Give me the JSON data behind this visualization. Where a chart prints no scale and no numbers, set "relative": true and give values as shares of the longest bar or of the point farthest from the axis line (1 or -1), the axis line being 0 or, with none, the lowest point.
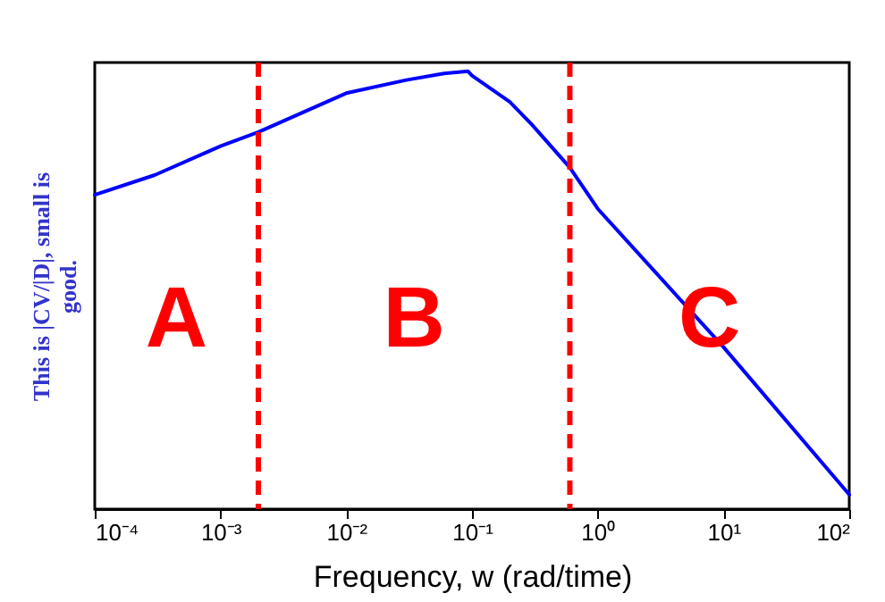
{
  "chart_data": {
    "type": "line",
    "relative": true,
    "log": "x",
    "legend": false,
    "xlabel": "Frequency, w  (rad/time)",
    "ylabel": "This is |CV/|D|, small is good.",
    "xlim": [
      0.0001,
      100
    ],
    "xticks": [
      {
        "value": 0.0001,
        "label": "10⁻⁴"
      },
      {
        "value": 0.001,
        "label": "10⁻³"
      },
      {
        "value": 0.01,
        "label": "10⁻²"
      },
      {
        "value": 0.1,
        "label": "10⁻¹"
      },
      {
        "value": 1,
        "label": "10⁰"
      },
      {
        "value": 10,
        "label": "10¹"
      },
      {
        "value": 100,
        "label": "10²"
      }
    ],
    "series": [
      {
        "color": "#0000ff",
        "x": [
          0.0001,
          0.0003,
          0.001,
          0.002,
          0.01,
          0.03,
          0.06,
          0.093,
          0.1,
          0.2,
          0.3,
          0.6,
          1,
          10,
          100
        ],
        "values": [
          0.718,
          0.763,
          0.829,
          0.861,
          0.95,
          0.98,
          0.995,
          1.0,
          0.99,
          0.93,
          0.878,
          0.78,
          0.686,
          0.37,
          0.033
        ]
      }
    ],
    "ref_lines": [
      {
        "axis": "x",
        "value": 0.002,
        "color": "#ff0000",
        "line_style": "dashed"
      },
      {
        "axis": "x",
        "value": 0.6,
        "color": "#ff0000",
        "line_style": "dashed"
      }
    ],
    "annotations": [
      "A",
      "B",
      "C"
    ]
  }
}
